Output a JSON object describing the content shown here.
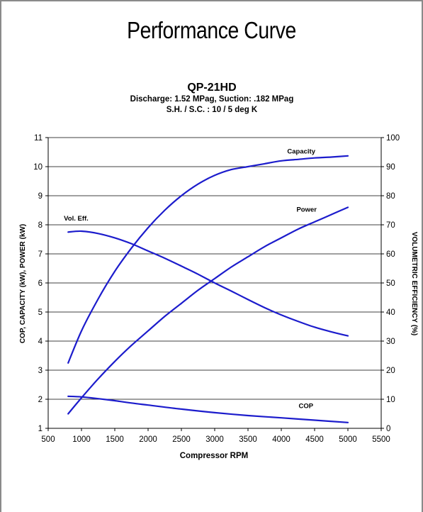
{
  "page": {
    "title": "Performance Curve"
  },
  "chart_data": {
    "type": "line",
    "title": "QP-21HD",
    "subtitle": [
      "Discharge: 1.52 MPag, Suction: .182 MPag",
      "S.H. / S.C. : 10 / 5 deg K"
    ],
    "xlabel": "Compressor RPM",
    "ylabel": "COP, CAPACITY (kW), POWER (kW)",
    "y2label": "VOLUMETRIC EFFICIENCY (%)",
    "xlim": [
      500,
      5500
    ],
    "ylim": [
      1,
      11
    ],
    "y2lim": [
      0,
      100
    ],
    "xticks": [
      500,
      1000,
      1500,
      2000,
      2500,
      3000,
      3500,
      4000,
      4500,
      5000,
      5500
    ],
    "yticks": [
      1,
      2,
      3,
      4,
      5,
      6,
      7,
      8,
      9,
      10,
      11
    ],
    "y2ticks": [
      0,
      10,
      20,
      30,
      40,
      50,
      60,
      70,
      80,
      90,
      100
    ],
    "grid": "horizontal",
    "line_color": "#1c1ccc",
    "series": [
      {
        "name": "Capacity",
        "axis": "left",
        "x": [
          800,
          1000,
          1250,
          1500,
          1750,
          2000,
          2250,
          2500,
          2750,
          3000,
          3250,
          3500,
          3750,
          4000,
          4250,
          4500,
          4750,
          5000
        ],
        "values": [
          3.25,
          4.35,
          5.45,
          6.4,
          7.2,
          7.9,
          8.5,
          9.0,
          9.4,
          9.7,
          9.9,
          10.0,
          10.1,
          10.2,
          10.25,
          10.3,
          10.33,
          10.37
        ]
      },
      {
        "name": "Power",
        "axis": "left",
        "x": [
          800,
          1000,
          1250,
          1500,
          1750,
          2000,
          2250,
          2500,
          2750,
          3000,
          3250,
          3500,
          3750,
          4000,
          4250,
          4500,
          4750,
          5000
        ],
        "values": [
          1.5,
          2.05,
          2.7,
          3.3,
          3.85,
          4.35,
          4.85,
          5.3,
          5.75,
          6.15,
          6.55,
          6.9,
          7.25,
          7.55,
          7.85,
          8.1,
          8.35,
          8.6
        ]
      },
      {
        "name": "Vol. Eff.",
        "axis": "right",
        "x": [
          800,
          1000,
          1250,
          1500,
          1750,
          2000,
          2250,
          2500,
          2750,
          3000,
          3250,
          3500,
          3750,
          4000,
          4250,
          4500,
          4750,
          5000
        ],
        "values": [
          67.5,
          67.8,
          67.0,
          65.5,
          63.5,
          61.0,
          58.5,
          55.8,
          53.0,
          50.0,
          47.2,
          44.3,
          41.5,
          39.0,
          36.8,
          34.8,
          33.2,
          31.8
        ]
      },
      {
        "name": "COP",
        "axis": "left",
        "x": [
          800,
          1000,
          1250,
          1500,
          1750,
          2000,
          2500,
          3000,
          3500,
          4000,
          4500,
          5000
        ],
        "values": [
          2.1,
          2.08,
          2.02,
          1.95,
          1.87,
          1.8,
          1.66,
          1.54,
          1.44,
          1.36,
          1.28,
          1.2
        ]
      }
    ],
    "annotations": [
      {
        "text": "Capacity",
        "series": "Capacity",
        "x": 4300,
        "y": 10.45
      },
      {
        "text": "Power",
        "series": "Power",
        "x": 4380,
        "y": 8.45
      },
      {
        "text": "Vol. Eff.",
        "series": "Vol. Eff.",
        "x": 920,
        "y": 8.15
      },
      {
        "text": "COP",
        "series": "COP",
        "x": 4370,
        "y": 1.7
      }
    ]
  }
}
